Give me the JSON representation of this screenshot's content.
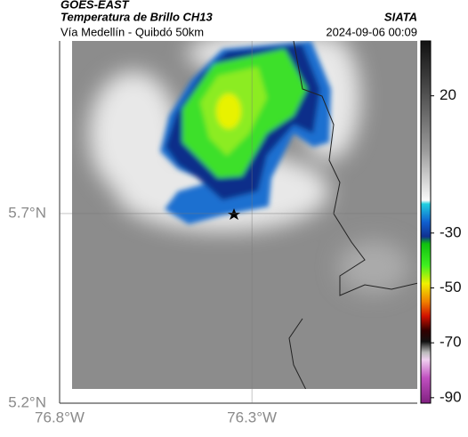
{
  "header": {
    "title": "GOES-EAST",
    "subtitle": "Temperatura de Brillo CH13",
    "source": "SIATA",
    "region": "Vía Medellín - Quibdó 50km",
    "timestamp": "2024-09-06 00:09"
  },
  "map": {
    "xlim": [
      -76.8,
      -75.87
    ],
    "ylim": [
      5.2,
      6.155
    ],
    "xticks": [
      {
        "value": -76.8,
        "label": "76.8°W"
      },
      {
        "value": -76.3,
        "label": "76.3°W"
      }
    ],
    "yticks": [
      {
        "value": 5.7,
        "label": "5.7°N"
      },
      {
        "value": 5.2,
        "label": "5.2°N"
      }
    ],
    "grid": true
  },
  "colorbar": {
    "clim": [
      -92,
      40
    ],
    "ticks": [
      20,
      -30,
      -50,
      -70,
      -90
    ]
  }
}
